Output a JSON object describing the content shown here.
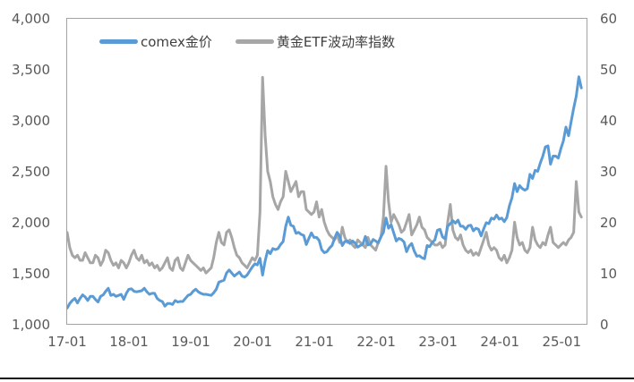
{
  "chart": {
    "title": "",
    "legend": [
      {
        "label": "comex金价",
        "color": "#5B9BD5"
      },
      {
        "label": "黄金ETF波动率指数",
        "color": "#A6A6A6"
      }
    ],
    "left_axis": {
      "ticks": [
        "4,000",
        "3,500",
        "3,000",
        "2,500",
        "2,000",
        "1,500",
        "1,000"
      ]
    },
    "right_axis": {
      "ticks": [
        "60",
        "50",
        "40",
        "30",
        "20",
        "10",
        "0"
      ]
    },
    "x_axis": {
      "ticks": [
        "17-01",
        "18-01",
        "19-01",
        "20-01",
        "21-01",
        "22-01",
        "23-01",
        "24-01",
        "25-01"
      ]
    }
  },
  "chart_data": {
    "type": "line",
    "title": "",
    "x_start": "2017-01",
    "x_end": "2025-05",
    "points_per_month": 2,
    "x_domain_months": 101,
    "x_tick_label_every_months": 12,
    "x_tick_labels": [
      "17-01",
      "18-01",
      "19-01",
      "20-01",
      "21-01",
      "22-01",
      "23-01",
      "24-01",
      "25-01"
    ],
    "grid": false,
    "legend_position": "top-left-inside",
    "left_ylim": [
      1000,
      4000
    ],
    "right_ylim": [
      0,
      60
    ],
    "left_tick_values": [
      1000,
      1500,
      2000,
      2500,
      3000,
      3500,
      4000
    ],
    "right_tick_values": [
      0,
      10,
      20,
      30,
      40,
      50,
      60
    ],
    "series": [
      {
        "name": "comex金价",
        "axis": "left",
        "color": "#5B9BD5",
        "width": 3,
        "values": [
          1155,
          1200,
          1230,
          1250,
          1205,
          1250,
          1285,
          1265,
          1230,
          1270,
          1270,
          1240,
          1215,
          1270,
          1285,
          1320,
          1350,
          1280,
          1290,
          1270,
          1280,
          1290,
          1240,
          1300,
          1340,
          1345,
          1320,
          1315,
          1320,
          1325,
          1350,
          1315,
          1290,
          1300,
          1300,
          1250,
          1230,
          1220,
          1175,
          1200,
          1200,
          1190,
          1230,
          1215,
          1220,
          1220,
          1250,
          1280,
          1290,
          1320,
          1340,
          1315,
          1300,
          1290,
          1290,
          1285,
          1280,
          1305,
          1340,
          1410,
          1420,
          1430,
          1500,
          1530,
          1500,
          1470,
          1490,
          1510,
          1470,
          1460,
          1480,
          1520,
          1560,
          1590,
          1580,
          1645,
          1480,
          1620,
          1720,
          1690,
          1740,
          1730,
          1740,
          1780,
          1810,
          1960,
          2050,
          1970,
          1960,
          1890,
          1900,
          1880,
          1870,
          1780,
          1840,
          1895,
          1850,
          1850,
          1820,
          1730,
          1700,
          1710,
          1745,
          1770,
          1840,
          1900,
          1860,
          1770,
          1810,
          1815,
          1790,
          1815,
          1795,
          1755,
          1770,
          1785,
          1860,
          1775,
          1785,
          1830,
          1815,
          1795,
          1855,
          1900,
          2040,
          1940,
          1975,
          1895,
          1815,
          1840,
          1830,
          1805,
          1710,
          1765,
          1790,
          1715,
          1665,
          1670,
          1650,
          1640,
          1770,
          1760,
          1800,
          1825,
          1920,
          1930,
          1855,
          1835,
          1960,
          1985,
          2015,
          1990,
          2020,
          1960,
          1960,
          1930,
          1965,
          1970,
          1915,
          1940,
          1930,
          1865,
          1935,
          1995,
          1985,
          2040,
          2030,
          2070,
          2030,
          2040,
          2005,
          2045,
          2160,
          2240,
          2380,
          2300,
          2360,
          2330,
          2315,
          2330,
          2470,
          2430,
          2510,
          2500,
          2580,
          2650,
          2740,
          2750,
          2570,
          2650,
          2650,
          2630,
          2720,
          2800,
          2935,
          2850,
          2985,
          3120,
          3240,
          3430,
          3320
        ]
      },
      {
        "name": "黄金ETF波动率指数",
        "axis": "right",
        "color": "#A6A6A6",
        "width": 3,
        "values": [
          18,
          15,
          13.5,
          13,
          13.5,
          12.5,
          12.5,
          14,
          13,
          12,
          12,
          13.5,
          13,
          11.5,
          12.5,
          14.5,
          14,
          12.5,
          11.5,
          12,
          11,
          12.5,
          12,
          11,
          12,
          13.5,
          14.5,
          13,
          12.5,
          13.5,
          12,
          12.5,
          11.5,
          12,
          11,
          11.5,
          10.5,
          11,
          12,
          13,
          11,
          10.5,
          12.5,
          13,
          11,
          10.5,
          12,
          13.5,
          12.5,
          12,
          11.5,
          11,
          10.5,
          11,
          10,
          10.5,
          11,
          13,
          16,
          18,
          16,
          15.5,
          18,
          18.5,
          17,
          15,
          13.5,
          13,
          12,
          11.5,
          11,
          12,
          13,
          12.5,
          13.5,
          22,
          48.5,
          37,
          30,
          28,
          25,
          23.5,
          22.5,
          24,
          25,
          30,
          28,
          26,
          27,
          28,
          25,
          26,
          26,
          22.5,
          22,
          21.5,
          22,
          24,
          21,
          22.5,
          20,
          18.5,
          17.5,
          17,
          16.5,
          17.5,
          16,
          19,
          17,
          16,
          16.5,
          15.5,
          15,
          16.5,
          16,
          15.5,
          15,
          17,
          15.5,
          15,
          14.5,
          16,
          17,
          21,
          31,
          24,
          20,
          21.5,
          20.5,
          19.5,
          18,
          18.5,
          20,
          21.5,
          17.5,
          18.5,
          19.5,
          21,
          19,
          18.5,
          17,
          16.5,
          16,
          15.5,
          15.5,
          16,
          15,
          15.5,
          20,
          23.5,
          18.5,
          17,
          16.5,
          17.5,
          15.5,
          14.5,
          14,
          14.5,
          13.5,
          14,
          13.5,
          15,
          16.5,
          18,
          15.5,
          14.5,
          15,
          14.5,
          13,
          12.5,
          13.5,
          12,
          13,
          14.5,
          20,
          17,
          15.5,
          16,
          14.5,
          14,
          15,
          19,
          16.5,
          15.5,
          15,
          16,
          15.5,
          17.5,
          19,
          16,
          15.5,
          15,
          15.5,
          16,
          15.5,
          16.5,
          17,
          18,
          28,
          22,
          21
        ]
      }
    ]
  }
}
